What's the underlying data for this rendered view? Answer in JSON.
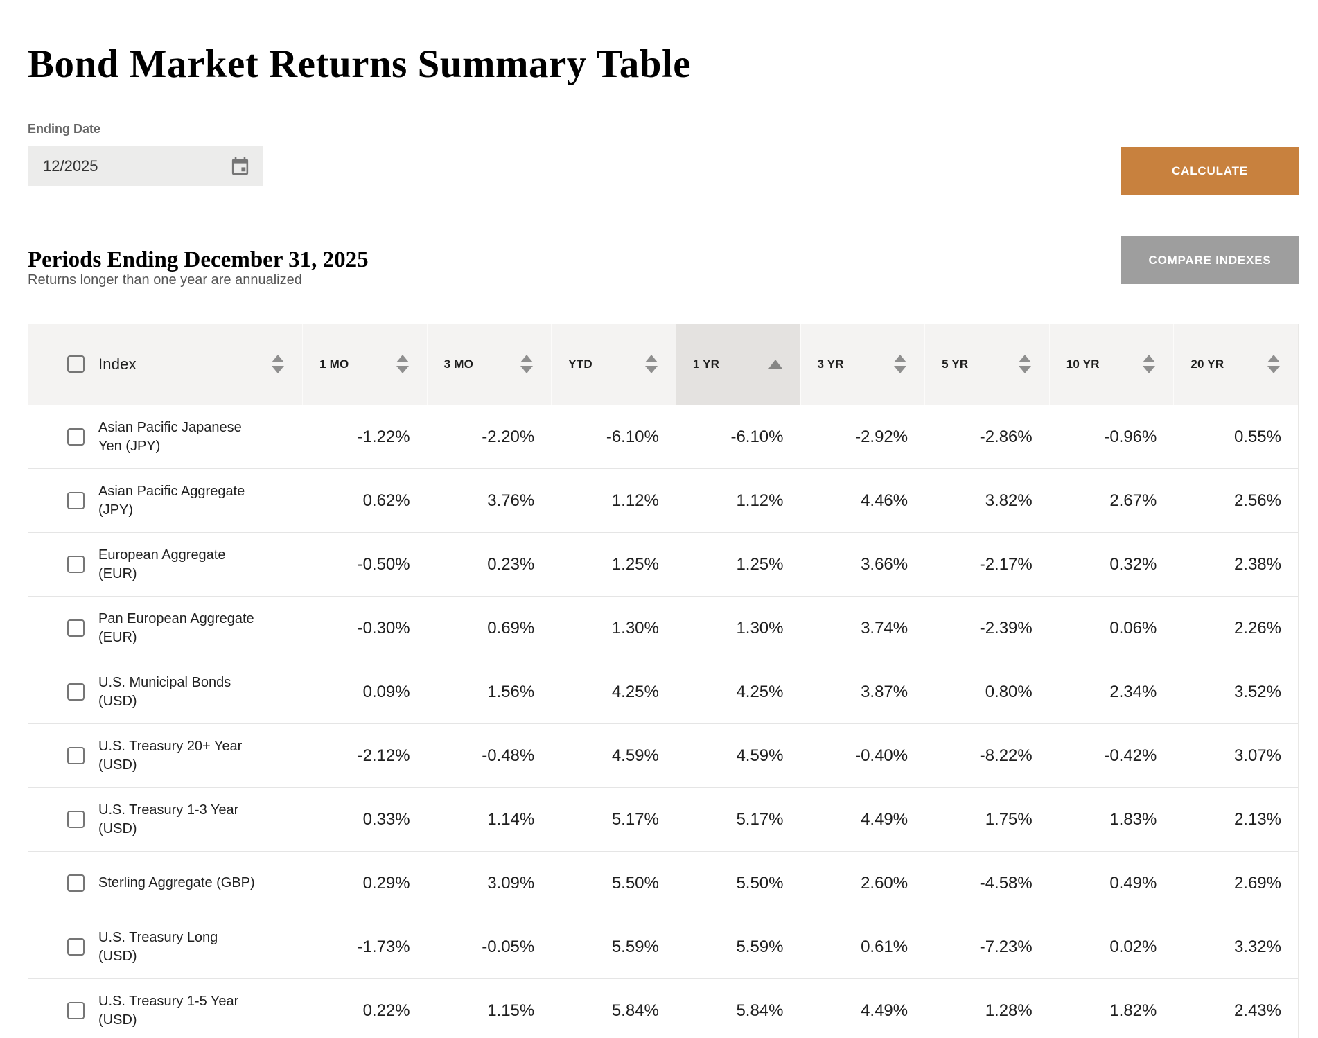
{
  "header": {
    "title": "Bond Market Returns Summary Table",
    "ending_date": {
      "label": "Ending Date",
      "value": "12/2025"
    },
    "buttons": {
      "calculate": "CALCULATE",
      "compare": "COMPARE INDEXES"
    },
    "periods_heading": "Periods Ending December 31, 2025",
    "subtitle": "Returns longer than one year are annualized"
  },
  "icons": {
    "date_picker": "calendar-icon",
    "sortable_column": "sort-up-down-icon",
    "sorted_column": "sort-up-icon"
  },
  "colors": {
    "accent_orange": "#c8813e",
    "secondary_button_gray": "#9e9e9e",
    "table_header_bg": "#f4f3f2",
    "sorted_header_bg": "#e4e2e0",
    "text": "#1f1f1f",
    "muted_text": "#555555",
    "row_border": "#e5e5e5"
  },
  "table": {
    "sorted_column": "1 YR",
    "sort_direction": "ascending",
    "columns": [
      {
        "label": "Index",
        "sorted": false
      },
      {
        "label": "1 MO",
        "sorted": false
      },
      {
        "label": "3 MO",
        "sorted": false
      },
      {
        "label": "YTD",
        "sorted": false
      },
      {
        "label": "1 YR",
        "sorted": true
      },
      {
        "label": "3 YR",
        "sorted": false
      },
      {
        "label": "5 YR",
        "sorted": false
      },
      {
        "label": "10 YR",
        "sorted": false
      },
      {
        "label": "20 YR",
        "sorted": false
      }
    ],
    "rows": [
      {
        "name": [
          "Asian Pacific Japanese",
          "Yen (JPY)"
        ],
        "values": [
          "-1.22%",
          "-2.20%",
          "-6.10%",
          "-6.10%",
          "-2.92%",
          "-2.86%",
          "-0.96%",
          "0.55%"
        ]
      },
      {
        "name": [
          "Asian Pacific Aggregate",
          "(JPY)"
        ],
        "values": [
          "0.62%",
          "3.76%",
          "1.12%",
          "1.12%",
          "4.46%",
          "3.82%",
          "2.67%",
          "2.56%"
        ]
      },
      {
        "name": [
          "European Aggregate",
          "(EUR)"
        ],
        "values": [
          "-0.50%",
          "0.23%",
          "1.25%",
          "1.25%",
          "3.66%",
          "-2.17%",
          "0.32%",
          "2.38%"
        ]
      },
      {
        "name": [
          "Pan European Aggregate",
          "(EUR)"
        ],
        "values": [
          "-0.30%",
          "0.69%",
          "1.30%",
          "1.30%",
          "3.74%",
          "-2.39%",
          "0.06%",
          "2.26%"
        ]
      },
      {
        "name": [
          "U.S. Municipal Bonds",
          "(USD)"
        ],
        "values": [
          "0.09%",
          "1.56%",
          "4.25%",
          "4.25%",
          "3.87%",
          "0.80%",
          "2.34%",
          "3.52%"
        ]
      },
      {
        "name": [
          "U.S. Treasury 20+ Year",
          "(USD)"
        ],
        "values": [
          "-2.12%",
          "-0.48%",
          "4.59%",
          "4.59%",
          "-0.40%",
          "-8.22%",
          "-0.42%",
          "3.07%"
        ]
      },
      {
        "name": [
          "U.S. Treasury 1-3 Year",
          "(USD)"
        ],
        "values": [
          "0.33%",
          "1.14%",
          "5.17%",
          "5.17%",
          "4.49%",
          "1.75%",
          "1.83%",
          "2.13%"
        ]
      },
      {
        "name": [
          "Sterling Aggregate (GBP)"
        ],
        "values": [
          "0.29%",
          "3.09%",
          "5.50%",
          "5.50%",
          "2.60%",
          "-4.58%",
          "0.49%",
          "2.69%"
        ]
      },
      {
        "name": [
          "U.S. Treasury Long",
          "(USD)"
        ],
        "values": [
          "-1.73%",
          "-0.05%",
          "5.59%",
          "5.59%",
          "0.61%",
          "-7.23%",
          "0.02%",
          "3.32%"
        ]
      },
      {
        "name": [
          "U.S. Treasury 1-5 Year",
          "(USD)"
        ],
        "values": [
          "0.22%",
          "1.15%",
          "5.84%",
          "5.84%",
          "4.49%",
          "1.28%",
          "1.82%",
          "2.43%"
        ]
      }
    ]
  }
}
